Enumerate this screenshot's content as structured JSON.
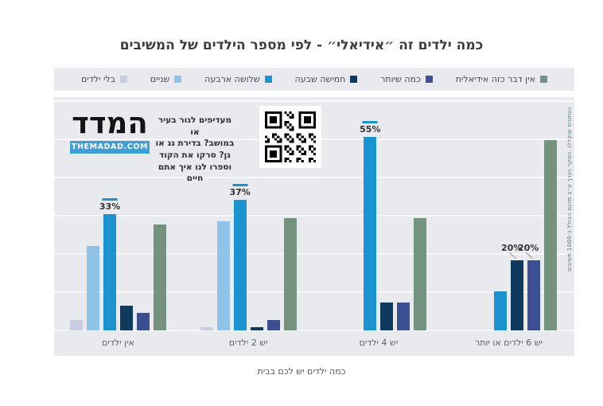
{
  "title": "כמה ילדים זה ״אידיאלי״ - לפי מספר הילדים של המשיבים",
  "branding": {
    "logo_text": "המדד",
    "logo_url_text": "THEMADAD.COM",
    "logo_bar_color": "#3d9fd6",
    "qr_caption": "מעדיפים לגור בעיר או\nבמושב? בדירת גג או\nגן? סרקו את הקוד\nוספרו לנו איך אתם חיים"
  },
  "footnote": "הנתונים שוקללו. הסקר נערך ע״ב מדגם הכולל כ-1000 משיבים",
  "chart_data": {
    "type": "bar",
    "title": "כמה ילדים זה ״אידיאלי״ - לפי מספר הילדים של המשיבים",
    "categories": [
      "אין ילדים",
      "יש 2 ילדים",
      "יש 4 ילדים",
      "יש 6 ילדים או יותר"
    ],
    "xlabel": "כמה ילדים יש לכם בבית",
    "ylabel": "",
    "unit": "%",
    "ylim": [
      0,
      60
    ],
    "grid": true,
    "legend_position": "top",
    "series": [
      {
        "name": "בלי ילדים",
        "color": "#c7cce3",
        "values": [
          3,
          1,
          0,
          0
        ]
      },
      {
        "name": "שניים",
        "color": "#8fc3e8",
        "values": [
          24,
          31,
          0,
          0
        ]
      },
      {
        "name": "שלושה ארבעה",
        "color": "#1b93d1",
        "values": [
          33,
          37,
          55,
          11
        ]
      },
      {
        "name": "חמישה שבעה",
        "color": "#0f3a5e",
        "values": [
          7,
          1,
          8,
          20
        ]
      },
      {
        "name": "כמה שיותר",
        "color": "#3d4f93",
        "values": [
          5,
          3,
          8,
          20
        ]
      },
      {
        "name": "אין דבר כזה אידיאלית",
        "color": "#74937e",
        "values": [
          30,
          32,
          32,
          54
        ]
      }
    ],
    "annotations": [
      {
        "category_index": 0,
        "series_index": 2,
        "text": "33%",
        "style": "dash"
      },
      {
        "category_index": 1,
        "series_index": 2,
        "text": "37%",
        "style": "dash"
      },
      {
        "category_index": 2,
        "series_index": 2,
        "text": "55%",
        "style": "dash"
      },
      {
        "category_index": 3,
        "series_index": 3,
        "text": "20%",
        "style": "leader"
      },
      {
        "category_index": 3,
        "series_index": 4,
        "text": "20%",
        "style": "leader"
      }
    ],
    "dash_color": "#1b93d1"
  }
}
